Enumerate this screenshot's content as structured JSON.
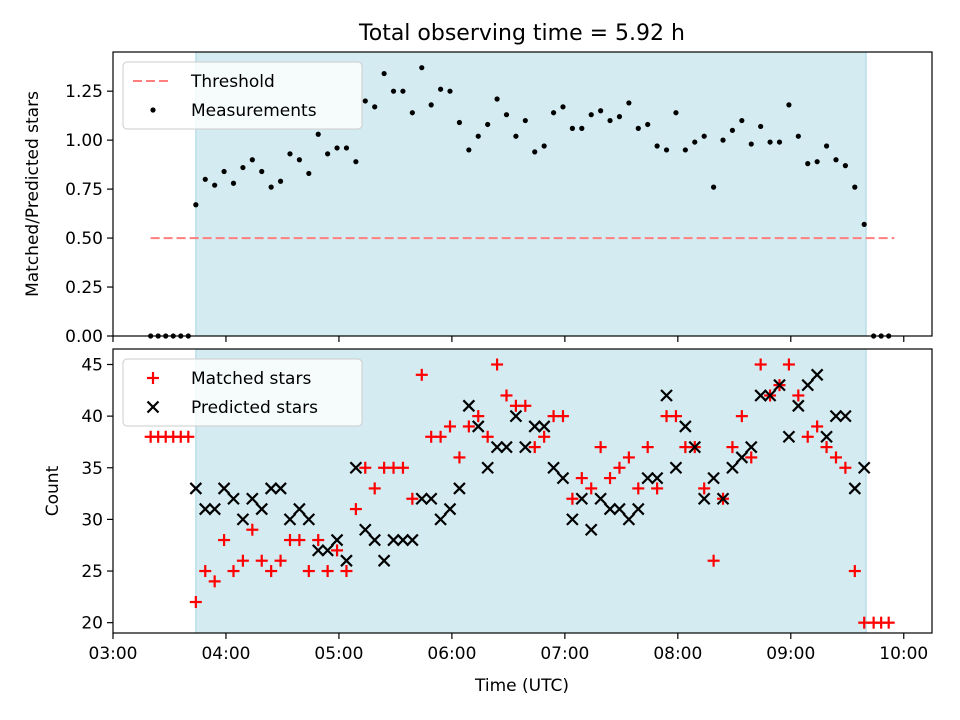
{
  "figure": {
    "title": "Total observing time = 5.92 h",
    "xlabel": "Time (UTC)",
    "xticks": [
      "03:00",
      "04:00",
      "05:00",
      "06:00",
      "07:00",
      "08:00",
      "09:00",
      "10:00"
    ]
  },
  "colors": {
    "shade": "#d3ebf1",
    "threshold": "#ff7f7f",
    "measurement": "#000000",
    "matched": "#ff0000",
    "predicted": "#000000"
  },
  "chart_data": [
    {
      "type": "scatter",
      "ylabel": "Matched/Predicted stars",
      "xlim": [
        "03:00",
        "10:15"
      ],
      "ylim": [
        0,
        1.45
      ],
      "yticks": [
        "0.00",
        "0.25",
        "0.50",
        "0.75",
        "1.00",
        "1.25"
      ],
      "legend_position": "top-left",
      "shaded_interval": [
        "03:44",
        "09:40"
      ],
      "threshold": {
        "label": "Threshold",
        "y": 0.5,
        "x_from": "03:20",
        "x_to": "09:55"
      },
      "series": [
        {
          "name": "Measurements",
          "points": [
            [
              "03:20",
              0.0
            ],
            [
              "03:24",
              0.0
            ],
            [
              "03:28",
              0.0
            ],
            [
              "03:32",
              0.0
            ],
            [
              "03:36",
              0.0
            ],
            [
              "03:40",
              0.0
            ],
            [
              "03:44",
              0.67
            ],
            [
              "03:49",
              0.8
            ],
            [
              "03:54",
              0.77
            ],
            [
              "03:59",
              0.84
            ],
            [
              "04:04",
              0.78
            ],
            [
              "04:09",
              0.86
            ],
            [
              "04:14",
              0.9
            ],
            [
              "04:19",
              0.84
            ],
            [
              "04:24",
              0.76
            ],
            [
              "04:29",
              0.79
            ],
            [
              "04:34",
              0.93
            ],
            [
              "04:39",
              0.9
            ],
            [
              "04:44",
              0.83
            ],
            [
              "04:49",
              1.03
            ],
            [
              "04:54",
              0.93
            ],
            [
              "04:59",
              0.96
            ],
            [
              "05:04",
              0.96
            ],
            [
              "05:09",
              0.89
            ],
            [
              "05:14",
              1.2
            ],
            [
              "05:19",
              1.17
            ],
            [
              "05:24",
              1.34
            ],
            [
              "05:29",
              1.25
            ],
            [
              "05:34",
              1.25
            ],
            [
              "05:39",
              1.14
            ],
            [
              "05:44",
              1.37
            ],
            [
              "05:49",
              1.18
            ],
            [
              "05:54",
              1.26
            ],
            [
              "05:59",
              1.25
            ],
            [
              "06:04",
              1.09
            ],
            [
              "06:09",
              0.95
            ],
            [
              "06:14",
              1.02
            ],
            [
              "06:19",
              1.08
            ],
            [
              "06:24",
              1.21
            ],
            [
              "06:29",
              1.13
            ],
            [
              "06:34",
              1.02
            ],
            [
              "06:39",
              1.1
            ],
            [
              "06:44",
              0.94
            ],
            [
              "06:49",
              0.97
            ],
            [
              "06:54",
              1.14
            ],
            [
              "06:59",
              1.17
            ],
            [
              "07:04",
              1.06
            ],
            [
              "07:09",
              1.06
            ],
            [
              "07:14",
              1.13
            ],
            [
              "07:19",
              1.15
            ],
            [
              "07:24",
              1.1
            ],
            [
              "07:29",
              1.12
            ],
            [
              "07:34",
              1.19
            ],
            [
              "07:39",
              1.06
            ],
            [
              "07:44",
              1.08
            ],
            [
              "07:49",
              0.97
            ],
            [
              "07:54",
              0.95
            ],
            [
              "07:59",
              1.14
            ],
            [
              "08:04",
              0.95
            ],
            [
              "08:09",
              0.99
            ],
            [
              "08:14",
              1.02
            ],
            [
              "08:19",
              0.76
            ],
            [
              "08:24",
              1.0
            ],
            [
              "08:29",
              1.05
            ],
            [
              "08:34",
              1.1
            ],
            [
              "08:39",
              0.98
            ],
            [
              "08:44",
              1.07
            ],
            [
              "08:49",
              0.99
            ],
            [
              "08:54",
              0.99
            ],
            [
              "08:59",
              1.18
            ],
            [
              "09:04",
              1.02
            ],
            [
              "09:09",
              0.88
            ],
            [
              "09:14",
              0.89
            ],
            [
              "09:19",
              0.97
            ],
            [
              "09:24",
              0.9
            ],
            [
              "09:29",
              0.87
            ],
            [
              "09:34",
              0.76
            ],
            [
              "09:39",
              0.57
            ],
            [
              "09:44",
              0.0
            ],
            [
              "09:48",
              0.0
            ],
            [
              "09:52",
              0.0
            ]
          ]
        }
      ]
    },
    {
      "type": "scatter",
      "ylabel": "Count",
      "xlim": [
        "03:00",
        "10:15"
      ],
      "ylim": [
        19,
        46.5
      ],
      "yticks": [
        "20",
        "25",
        "30",
        "35",
        "40",
        "45"
      ],
      "legend_position": "top-left",
      "shaded_interval": [
        "03:44",
        "09:40"
      ],
      "series": [
        {
          "name": "Matched stars",
          "marker": "plus",
          "points": [
            [
              "03:20",
              38
            ],
            [
              "03:24",
              38
            ],
            [
              "03:28",
              38
            ],
            [
              "03:32",
              38
            ],
            [
              "03:36",
              38
            ],
            [
              "03:40",
              38
            ],
            [
              "03:44",
              22
            ],
            [
              "03:49",
              25
            ],
            [
              "03:54",
              24
            ],
            [
              "03:59",
              28
            ],
            [
              "04:04",
              25
            ],
            [
              "04:09",
              26
            ],
            [
              "04:14",
              29
            ],
            [
              "04:19",
              26
            ],
            [
              "04:24",
              25
            ],
            [
              "04:29",
              26
            ],
            [
              "04:34",
              28
            ],
            [
              "04:39",
              28
            ],
            [
              "04:44",
              25
            ],
            [
              "04:49",
              28
            ],
            [
              "04:54",
              25
            ],
            [
              "04:59",
              27
            ],
            [
              "05:04",
              25
            ],
            [
              "05:09",
              31
            ],
            [
              "05:14",
              35
            ],
            [
              "05:19",
              33
            ],
            [
              "05:24",
              35
            ],
            [
              "05:29",
              35
            ],
            [
              "05:34",
              35
            ],
            [
              "05:39",
              32
            ],
            [
              "05:44",
              44
            ],
            [
              "05:49",
              38
            ],
            [
              "05:54",
              38
            ],
            [
              "05:59",
              39
            ],
            [
              "06:04",
              36
            ],
            [
              "06:09",
              39
            ],
            [
              "06:14",
              40
            ],
            [
              "06:19",
              38
            ],
            [
              "06:24",
              45
            ],
            [
              "06:29",
              42
            ],
            [
              "06:34",
              41
            ],
            [
              "06:39",
              41
            ],
            [
              "06:44",
              37
            ],
            [
              "06:49",
              38
            ],
            [
              "06:54",
              40
            ],
            [
              "06:59",
              40
            ],
            [
              "07:04",
              32
            ],
            [
              "07:09",
              34
            ],
            [
              "07:14",
              33
            ],
            [
              "07:19",
              37
            ],
            [
              "07:24",
              34
            ],
            [
              "07:29",
              35
            ],
            [
              "07:34",
              36
            ],
            [
              "07:39",
              33
            ],
            [
              "07:44",
              37
            ],
            [
              "07:49",
              33
            ],
            [
              "07:54",
              40
            ],
            [
              "07:59",
              40
            ],
            [
              "08:04",
              37
            ],
            [
              "08:09",
              37
            ],
            [
              "08:14",
              33
            ],
            [
              "08:19",
              26
            ],
            [
              "08:24",
              32
            ],
            [
              "08:29",
              37
            ],
            [
              "08:34",
              40
            ],
            [
              "08:39",
              36
            ],
            [
              "08:44",
              45
            ],
            [
              "08:49",
              42
            ],
            [
              "08:54",
              43
            ],
            [
              "08:59",
              45
            ],
            [
              "09:04",
              42
            ],
            [
              "09:09",
              38
            ],
            [
              "09:14",
              39
            ],
            [
              "09:19",
              37
            ],
            [
              "09:24",
              36
            ],
            [
              "09:29",
              35
            ],
            [
              "09:34",
              25
            ],
            [
              "09:39",
              20
            ],
            [
              "09:44",
              20
            ],
            [
              "09:48",
              20
            ],
            [
              "09:52",
              20
            ]
          ]
        },
        {
          "name": "Predicted stars",
          "marker": "x",
          "points": [
            [
              "03:44",
              33
            ],
            [
              "03:49",
              31
            ],
            [
              "03:54",
              31
            ],
            [
              "03:59",
              33
            ],
            [
              "04:04",
              32
            ],
            [
              "04:09",
              30
            ],
            [
              "04:14",
              32
            ],
            [
              "04:19",
              31
            ],
            [
              "04:24",
              33
            ],
            [
              "04:29",
              33
            ],
            [
              "04:34",
              30
            ],
            [
              "04:39",
              31
            ],
            [
              "04:44",
              30
            ],
            [
              "04:49",
              27
            ],
            [
              "04:54",
              27
            ],
            [
              "04:59",
              28
            ],
            [
              "05:04",
              26
            ],
            [
              "05:09",
              35
            ],
            [
              "05:14",
              29
            ],
            [
              "05:19",
              28
            ],
            [
              "05:24",
              26
            ],
            [
              "05:29",
              28
            ],
            [
              "05:34",
              28
            ],
            [
              "05:39",
              28
            ],
            [
              "05:44",
              32
            ],
            [
              "05:49",
              32
            ],
            [
              "05:54",
              30
            ],
            [
              "05:59",
              31
            ],
            [
              "06:04",
              33
            ],
            [
              "06:09",
              41
            ],
            [
              "06:14",
              39
            ],
            [
              "06:19",
              35
            ],
            [
              "06:24",
              37
            ],
            [
              "06:29",
              37
            ],
            [
              "06:34",
              40
            ],
            [
              "06:39",
              37
            ],
            [
              "06:44",
              39
            ],
            [
              "06:49",
              39
            ],
            [
              "06:54",
              35
            ],
            [
              "06:59",
              34
            ],
            [
              "07:04",
              30
            ],
            [
              "07:09",
              32
            ],
            [
              "07:14",
              29
            ],
            [
              "07:19",
              32
            ],
            [
              "07:24",
              31
            ],
            [
              "07:29",
              31
            ],
            [
              "07:34",
              30
            ],
            [
              "07:39",
              31
            ],
            [
              "07:44",
              34
            ],
            [
              "07:49",
              34
            ],
            [
              "07:54",
              42
            ],
            [
              "07:59",
              35
            ],
            [
              "08:04",
              39
            ],
            [
              "08:09",
              37
            ],
            [
              "08:14",
              32
            ],
            [
              "08:19",
              34
            ],
            [
              "08:24",
              32
            ],
            [
              "08:29",
              35
            ],
            [
              "08:34",
              36
            ],
            [
              "08:39",
              37
            ],
            [
              "08:44",
              42
            ],
            [
              "08:49",
              42
            ],
            [
              "08:54",
              43
            ],
            [
              "08:59",
              38
            ],
            [
              "09:04",
              41
            ],
            [
              "09:09",
              43
            ],
            [
              "09:14",
              44
            ],
            [
              "09:19",
              38
            ],
            [
              "09:24",
              40
            ],
            [
              "09:29",
              40
            ],
            [
              "09:34",
              33
            ],
            [
              "09:39",
              35
            ]
          ]
        }
      ]
    }
  ]
}
